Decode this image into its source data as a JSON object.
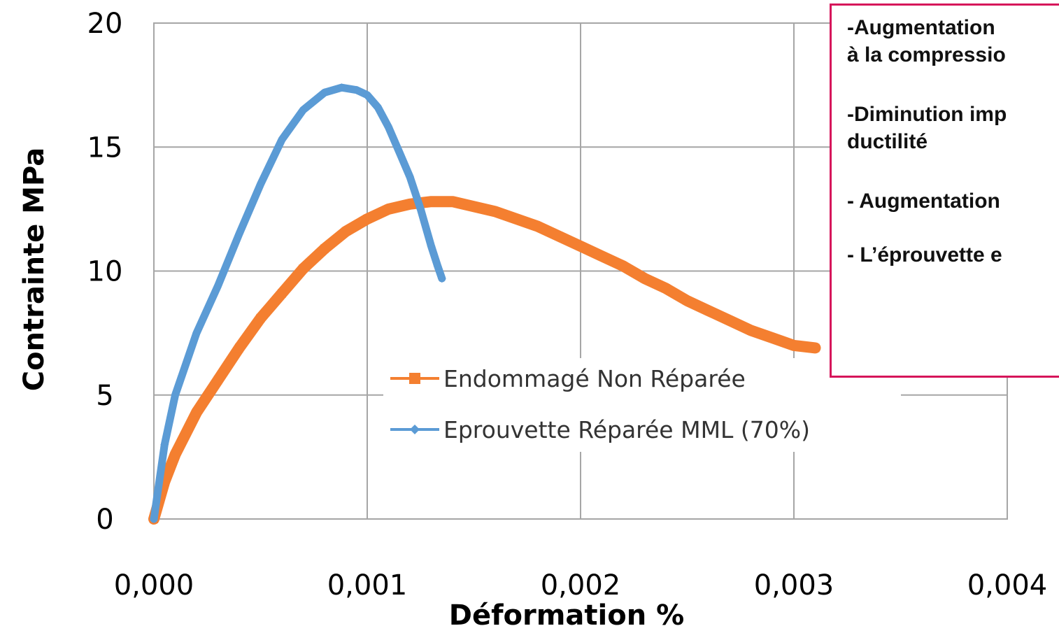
{
  "chart_data": {
    "type": "line",
    "title": "",
    "xlabel": "Déformation %",
    "ylabel": "Contrainte MPa",
    "xlim": [
      0,
      0.004
    ],
    "ylim": [
      0,
      20
    ],
    "x_ticks": [
      "0,000",
      "0,001",
      "0,002",
      "0,003",
      "0,004"
    ],
    "y_ticks": [
      "0",
      "5",
      "10",
      "15",
      "20"
    ],
    "grid": true,
    "legend": "center",
    "series": [
      {
        "name": "Endommagé Non Réparée",
        "color": "#f47f30",
        "marker": "square",
        "x": [
          0.0,
          5e-05,
          0.0001,
          0.0002,
          0.0003,
          0.0004,
          0.0005,
          0.0006,
          0.0007,
          0.0008,
          0.0009,
          0.001,
          0.0011,
          0.0012,
          0.0013,
          0.0014,
          0.0015,
          0.0016,
          0.0017,
          0.0018,
          0.0019,
          0.002,
          0.0021,
          0.0022,
          0.0023,
          0.0024,
          0.0025,
          0.0026,
          0.0027,
          0.0028,
          0.0029,
          0.003,
          0.0031
        ],
        "y": [
          0.0,
          1.5,
          2.6,
          4.3,
          5.6,
          6.9,
          8.1,
          9.1,
          10.1,
          10.9,
          11.6,
          12.1,
          12.5,
          12.7,
          12.8,
          12.8,
          12.6,
          12.4,
          12.1,
          11.8,
          11.4,
          11.0,
          10.6,
          10.2,
          9.7,
          9.3,
          8.8,
          8.4,
          8.0,
          7.6,
          7.3,
          7.0,
          6.9
        ]
      },
      {
        "name": "Eprouvette Réparée MML (70%)",
        "color": "#5b9bd5",
        "marker": "diamond",
        "x": [
          0.0,
          5e-05,
          0.0001,
          0.0002,
          0.0003,
          0.0004,
          0.0005,
          0.0006,
          0.0007,
          0.0008,
          0.00088,
          0.00095,
          0.001,
          0.00105,
          0.0011,
          0.00115,
          0.0012,
          0.00125,
          0.0013,
          0.00133,
          0.00135
        ],
        "y": [
          0.0,
          3.0,
          5.0,
          7.5,
          9.4,
          11.5,
          13.5,
          15.3,
          16.5,
          17.2,
          17.4,
          17.3,
          17.1,
          16.6,
          15.8,
          14.8,
          13.8,
          12.5,
          11.0,
          10.2,
          9.7
        ]
      }
    ]
  },
  "annotation": {
    "lines": [
      "-Augmentation",
      "à la compressio",
      "-Diminution imp",
      "ductilité",
      "- Augmentation",
      "- L’éprouvette e"
    ]
  }
}
